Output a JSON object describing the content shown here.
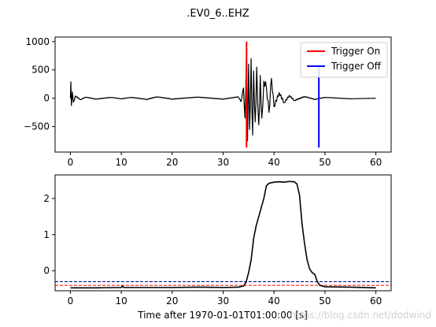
{
  "figure_title": ".EV0_6..EHZ",
  "watermark": "https://blog.csdn.net/dodwind",
  "colors": {
    "trace": "#000000",
    "trigger_on": "#ff0000",
    "trigger_off": "#0000ff",
    "thr_on_line": "#ff0000",
    "thr_off_line": "#00008b"
  },
  "chart_data": [
    {
      "type": "line",
      "title": "",
      "xlabel": "",
      "ylabel": "",
      "xlim": [
        -3,
        63
      ],
      "ylim": [
        -950,
        1080
      ],
      "xticks": [
        0,
        10,
        20,
        30,
        40,
        50,
        60
      ],
      "yticks": [
        -500,
        0,
        500,
        1000
      ],
      "legend_position": "top-right",
      "series": [
        {
          "kind": "waveform",
          "x": [
            0,
            0.1,
            0.2,
            0.4,
            0.6,
            1,
            2,
            3,
            5,
            8,
            10,
            12,
            15,
            17,
            20,
            25,
            30,
            33,
            33.5,
            34,
            34.3,
            34.6,
            34.8,
            35.0,
            35.2,
            35.5,
            35.8,
            36.0,
            36.3,
            36.6,
            37.0,
            37.3,
            37.6,
            38.0,
            38.5,
            39,
            39.5,
            40,
            41,
            42,
            43,
            44,
            46,
            48,
            50,
            55,
            60
          ],
          "values": [
            0,
            290,
            -130,
            110,
            -70,
            40,
            -25,
            20,
            -15,
            15,
            -10,
            15,
            -20,
            25,
            -15,
            20,
            -15,
            25,
            -60,
            180,
            -350,
            850,
            -750,
            600,
            -550,
            700,
            -650,
            480,
            -420,
            550,
            -470,
            400,
            -350,
            300,
            200,
            -250,
            350,
            -150,
            100,
            -80,
            50,
            -40,
            30,
            -20,
            15,
            -10,
            0
          ]
        }
      ],
      "vlines": [
        {
          "name": "Trigger On",
          "x": 34.6,
          "ymin": -870,
          "ymax": 1000
        },
        {
          "name": "Trigger Off",
          "x": 48.8,
          "ymin": -870,
          "ymax": 560
        }
      ],
      "legend": [
        "Trigger On",
        "Trigger Off"
      ]
    },
    {
      "type": "line",
      "title": "",
      "xlabel": "Time after 1970-01-01T01:00:00 [s]",
      "ylabel": "",
      "xlim": [
        -3,
        63
      ],
      "ylim": [
        -0.55,
        2.65
      ],
      "xticks": [
        0,
        10,
        20,
        30,
        40,
        50,
        60
      ],
      "yticks": [
        0,
        1,
        2
      ],
      "series": [
        {
          "kind": "characteristic",
          "x": [
            0,
            5,
            10,
            10.2,
            10.5,
            15,
            20,
            25,
            30,
            33,
            34,
            34.5,
            35,
            35.5,
            36,
            36.5,
            37,
            37.5,
            38,
            38.5,
            39,
            40,
            41,
            42,
            43,
            44,
            44.5,
            45,
            45.5,
            46,
            46.5,
            47,
            47.5,
            48,
            48.5,
            49,
            50,
            55,
            60
          ],
          "values": [
            -0.47,
            -0.47,
            -0.46,
            -0.42,
            -0.46,
            -0.46,
            -0.46,
            -0.45,
            -0.46,
            -0.45,
            -0.42,
            -0.32,
            -0.05,
            0.3,
            0.9,
            1.25,
            1.5,
            1.75,
            2.0,
            2.35,
            2.42,
            2.45,
            2.46,
            2.45,
            2.47,
            2.46,
            2.4,
            2.1,
            1.3,
            0.75,
            0.3,
            0.05,
            -0.05,
            -0.1,
            -0.3,
            -0.4,
            -0.44,
            -0.45,
            -0.47
          ]
        }
      ],
      "hlines": [
        {
          "name": "thr_on",
          "y": -0.4
        },
        {
          "name": "thr_off",
          "y": -0.3
        }
      ]
    }
  ]
}
